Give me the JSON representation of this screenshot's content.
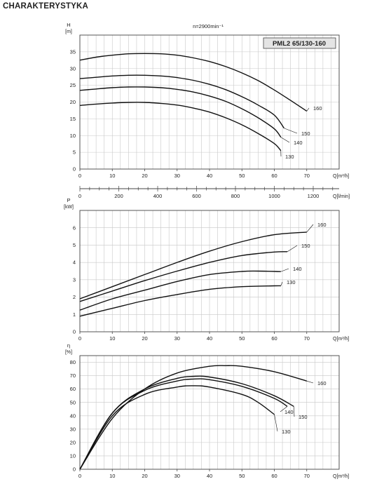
{
  "page": {
    "title": "CHARAKTERYSTYKA",
    "speed_label": "n=2900min⁻¹",
    "model_label": "PML2 65/130-160",
    "colors": {
      "curve": "#111111",
      "grid": "#c8c8c8",
      "frame": "#444444",
      "badge_bg": "#e4e4e4"
    }
  },
  "chart_data": [
    {
      "type": "line",
      "title": "",
      "ylabel": "H",
      "yunit": "[m]",
      "xlabel": "Q[m³/h]",
      "x_secondary_label": "Q[l/min]",
      "xlim": [
        0,
        80
      ],
      "ylim": [
        0,
        40
      ],
      "xticks": [
        0,
        10,
        20,
        30,
        40,
        50,
        60,
        70
      ],
      "yticks": [
        0,
        5,
        10,
        15,
        20,
        25,
        30,
        35
      ],
      "x_secondary_ticks": [
        0,
        200,
        400,
        600,
        800,
        1000,
        1200
      ],
      "x_secondary_lim": [
        0,
        1333.3
      ],
      "grid": true,
      "series": [
        {
          "name": "160",
          "x": [
            0,
            5,
            10,
            15,
            20,
            25,
            30,
            35,
            40,
            45,
            50,
            55,
            60,
            65,
            70
          ],
          "y": [
            32.5,
            33.4,
            34.0,
            34.4,
            34.5,
            34.4,
            34.0,
            33.2,
            32.1,
            30.6,
            28.7,
            26.4,
            23.6,
            20.5,
            17.3
          ]
        },
        {
          "name": "150",
          "x": [
            0,
            5,
            10,
            15,
            20,
            25,
            30,
            35,
            40,
            45,
            50,
            55,
            60,
            63
          ],
          "y": [
            27.0,
            27.4,
            27.8,
            28.0,
            28.0,
            27.8,
            27.3,
            26.5,
            25.3,
            23.7,
            21.6,
            19.1,
            16.1,
            12.2
          ]
        },
        {
          "name": "140",
          "x": [
            0,
            5,
            10,
            15,
            20,
            25,
            30,
            35,
            40,
            45,
            50,
            55,
            60,
            62
          ],
          "y": [
            23.5,
            23.9,
            24.3,
            24.5,
            24.5,
            24.3,
            23.8,
            23.0,
            21.8,
            20.2,
            18.0,
            15.3,
            12.0,
            9.5
          ]
        },
        {
          "name": "130",
          "x": [
            0,
            5,
            10,
            15,
            20,
            25,
            30,
            35,
            40,
            45,
            50,
            55,
            60,
            62
          ],
          "y": [
            19.0,
            19.4,
            19.7,
            19.9,
            19.9,
            19.6,
            19.1,
            18.2,
            17.0,
            15.3,
            13.2,
            10.6,
            7.6,
            5.5
          ]
        }
      ]
    },
    {
      "type": "line",
      "title": "",
      "ylabel": "P",
      "yunit": "[kW]",
      "xlabel": "Q[m³/h]",
      "xlim": [
        0,
        80
      ],
      "ylim": [
        0,
        7
      ],
      "xticks": [
        0,
        10,
        20,
        30,
        40,
        50,
        60,
        70
      ],
      "yticks": [
        0,
        1,
        2,
        3,
        4,
        5,
        6
      ],
      "grid": true,
      "series": [
        {
          "name": "160",
          "x": [
            0,
            10,
            20,
            30,
            40,
            50,
            60,
            70
          ],
          "y": [
            1.9,
            2.6,
            3.3,
            4.0,
            4.65,
            5.2,
            5.6,
            5.75
          ]
        },
        {
          "name": "150",
          "x": [
            0,
            10,
            20,
            30,
            40,
            50,
            60,
            64
          ],
          "y": [
            1.75,
            2.35,
            2.95,
            3.5,
            4.0,
            4.4,
            4.6,
            4.62
          ]
        },
        {
          "name": "140",
          "x": [
            0,
            10,
            20,
            30,
            40,
            50,
            55,
            62
          ],
          "y": [
            1.25,
            1.9,
            2.4,
            2.9,
            3.3,
            3.48,
            3.5,
            3.47
          ]
        },
        {
          "name": "130",
          "x": [
            0,
            10,
            20,
            30,
            40,
            50,
            60,
            62
          ],
          "y": [
            0.9,
            1.35,
            1.8,
            2.15,
            2.45,
            2.6,
            2.65,
            2.65
          ]
        }
      ]
    },
    {
      "type": "line",
      "title": "",
      "ylabel": "η",
      "yunit": "[%]",
      "xlabel": "Q[m³/h]",
      "xlim": [
        0,
        80
      ],
      "ylim": [
        0,
        85
      ],
      "xticks": [
        0,
        10,
        20,
        30,
        40,
        50,
        60,
        70
      ],
      "yticks": [
        0,
        10,
        20,
        30,
        40,
        50,
        60,
        70,
        80
      ],
      "grid": true,
      "series": [
        {
          "name": "160",
          "x": [
            0,
            10,
            20,
            30,
            40,
            45,
            50,
            60,
            70
          ],
          "y": [
            0,
            38,
            60,
            72,
            77,
            77.5,
            77,
            73,
            66
          ]
        },
        {
          "name": "150",
          "x": [
            0,
            10,
            20,
            30,
            35,
            40,
            50,
            60,
            66
          ],
          "y": [
            0,
            42,
            60,
            68,
            69.5,
            69,
            64,
            55,
            47
          ]
        },
        {
          "name": "140",
          "x": [
            0,
            10,
            20,
            30,
            35,
            40,
            50,
            60,
            64
          ],
          "y": [
            0,
            42,
            59,
            66,
            67.5,
            67,
            62,
            53,
            47
          ]
        },
        {
          "name": "130",
          "x": [
            0,
            10,
            20,
            30,
            35,
            40,
            50,
            55,
            60
          ],
          "y": [
            0,
            40,
            56,
            61.5,
            62.5,
            61.5,
            56,
            50,
            41
          ]
        }
      ]
    }
  ]
}
